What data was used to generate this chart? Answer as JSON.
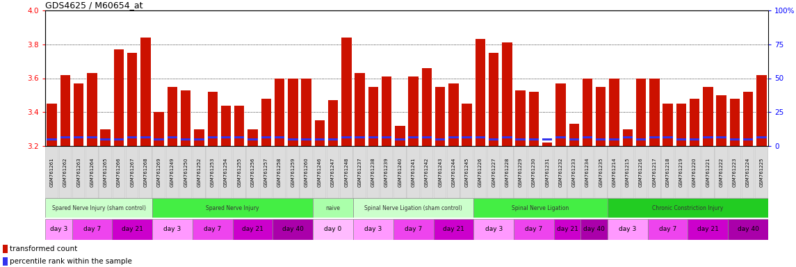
{
  "title": "GDS4625 / M60654_at",
  "ylim": [
    3.2,
    4.0
  ],
  "yticks": [
    3.2,
    3.4,
    3.6,
    3.8,
    4.0
  ],
  "right_yticks": [
    0,
    25,
    50,
    75,
    100
  ],
  "right_ytick_labels": [
    "0",
    "25",
    "50",
    "75",
    "100%"
  ],
  "bar_color": "#CC1100",
  "blue_color": "#3333EE",
  "bg_color": "#FFFFFF",
  "samples": [
    "GSM761261",
    "GSM761262",
    "GSM761263",
    "GSM761264",
    "GSM761265",
    "GSM761266",
    "GSM761267",
    "GSM761268",
    "GSM761269",
    "GSM761249",
    "GSM761250",
    "GSM761252",
    "GSM761253",
    "GSM761254",
    "GSM761255",
    "GSM761256",
    "GSM761257",
    "GSM761258",
    "GSM761259",
    "GSM761260",
    "GSM761246",
    "GSM761247",
    "GSM761248",
    "GSM761237",
    "GSM761238",
    "GSM761239",
    "GSM761240",
    "GSM761241",
    "GSM761242",
    "GSM761243",
    "GSM761244",
    "GSM761245",
    "GSM761226",
    "GSM761227",
    "GSM761228",
    "GSM761229",
    "GSM761230",
    "GSM761231",
    "GSM761232",
    "GSM761233",
    "GSM761234",
    "GSM761235",
    "GSM761214",
    "GSM761215",
    "GSM761216",
    "GSM761217",
    "GSM761218",
    "GSM761219",
    "GSM761220",
    "GSM761221",
    "GSM761222",
    "GSM761223",
    "GSM761224",
    "GSM761225"
  ],
  "red_values": [
    3.45,
    3.62,
    3.57,
    3.63,
    3.3,
    3.77,
    3.75,
    3.84,
    3.4,
    3.55,
    3.53,
    3.3,
    3.52,
    3.44,
    3.44,
    3.3,
    3.48,
    3.6,
    3.6,
    3.6,
    3.35,
    3.47,
    3.84,
    3.63,
    3.55,
    3.61,
    3.32,
    3.61,
    3.66,
    3.55,
    3.57,
    3.45,
    3.83,
    3.75,
    3.81,
    3.53,
    3.52,
    3.22,
    3.57,
    3.33,
    3.6,
    3.55,
    3.6,
    3.3,
    3.6,
    3.6,
    3.45,
    3.45,
    3.48,
    3.55,
    3.5,
    3.48,
    3.52,
    3.62
  ],
  "blue_values": [
    3.24,
    3.25,
    3.25,
    3.25,
    3.24,
    3.24,
    3.25,
    3.25,
    3.24,
    3.25,
    3.24,
    3.24,
    3.25,
    3.25,
    3.25,
    3.24,
    3.25,
    3.25,
    3.24,
    3.24,
    3.24,
    3.24,
    3.25,
    3.25,
    3.25,
    3.25,
    3.24,
    3.25,
    3.25,
    3.24,
    3.25,
    3.25,
    3.25,
    3.24,
    3.25,
    3.24,
    3.24,
    3.24,
    3.25,
    3.24,
    3.25,
    3.24,
    3.24,
    3.25,
    3.24,
    3.25,
    3.25,
    3.24,
    3.24,
    3.25,
    3.25,
    3.24,
    3.24,
    3.25
  ],
  "proto_groups": [
    {
      "label": "Spared Nerve Injury (sham control)",
      "start": 0,
      "end": 8,
      "color": "#CCFFCC"
    },
    {
      "label": "Spared Nerve Injury",
      "start": 8,
      "end": 20,
      "color": "#44EE44"
    },
    {
      "label": "naive",
      "start": 20,
      "end": 23,
      "color": "#AAFFAA"
    },
    {
      "label": "Spinal Nerve Ligation (sham control)",
      "start": 23,
      "end": 32,
      "color": "#CCFFCC"
    },
    {
      "label": "Spinal Nerve Ligation",
      "start": 32,
      "end": 42,
      "color": "#44EE44"
    },
    {
      "label": "Chronic Constriction Injury",
      "start": 42,
      "end": 54,
      "color": "#22CC22"
    }
  ],
  "time_groups": [
    {
      "label": "day 3",
      "start": 0,
      "end": 2,
      "color": "#FF99FF"
    },
    {
      "label": "day 7",
      "start": 2,
      "end": 5,
      "color": "#EE44EE"
    },
    {
      "label": "day 21",
      "start": 5,
      "end": 8,
      "color": "#CC00CC"
    },
    {
      "label": "day 3",
      "start": 8,
      "end": 11,
      "color": "#FF99FF"
    },
    {
      "label": "day 7",
      "start": 11,
      "end": 14,
      "color": "#EE44EE"
    },
    {
      "label": "day 21",
      "start": 14,
      "end": 17,
      "color": "#CC00CC"
    },
    {
      "label": "day 40",
      "start": 17,
      "end": 20,
      "color": "#AA00AA"
    },
    {
      "label": "day 0",
      "start": 20,
      "end": 23,
      "color": "#FFBBFF"
    },
    {
      "label": "day 3",
      "start": 23,
      "end": 26,
      "color": "#FF99FF"
    },
    {
      "label": "day 7",
      "start": 26,
      "end": 29,
      "color": "#EE44EE"
    },
    {
      "label": "day 21",
      "start": 29,
      "end": 32,
      "color": "#CC00CC"
    },
    {
      "label": "day 3",
      "start": 32,
      "end": 35,
      "color": "#FF99FF"
    },
    {
      "label": "day 7",
      "start": 35,
      "end": 38,
      "color": "#EE44EE"
    },
    {
      "label": "day 21",
      "start": 38,
      "end": 40,
      "color": "#CC00CC"
    },
    {
      "label": "day 40",
      "start": 40,
      "end": 42,
      "color": "#AA00AA"
    },
    {
      "label": "day 3",
      "start": 42,
      "end": 45,
      "color": "#FF99FF"
    },
    {
      "label": "day 7",
      "start": 45,
      "end": 48,
      "color": "#EE44EE"
    },
    {
      "label": "day 21",
      "start": 48,
      "end": 51,
      "color": "#CC00CC"
    },
    {
      "label": "day 40",
      "start": 51,
      "end": 54,
      "color": "#AA00AA"
    }
  ]
}
